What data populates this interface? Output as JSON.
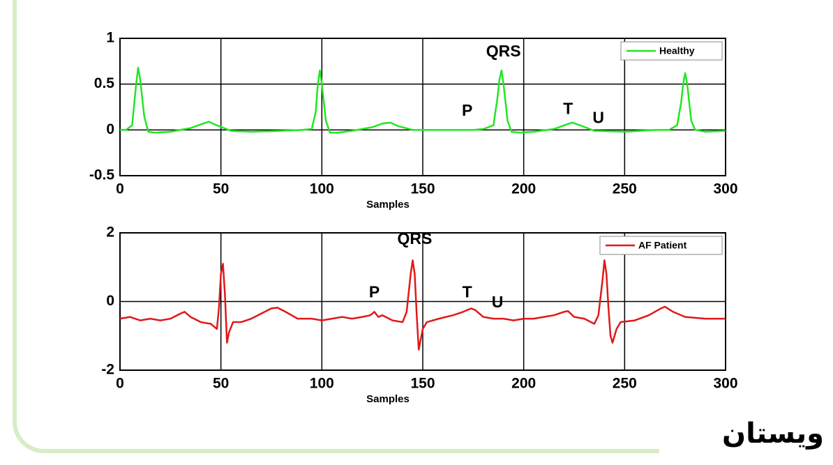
{
  "chart_data": [
    {
      "type": "line",
      "xlabel": "Samples",
      "x": [
        0,
        3,
        6,
        8,
        9,
        10,
        12,
        14,
        17,
        25,
        35,
        40,
        44,
        48,
        55,
        65,
        80,
        90,
        95,
        97,
        98,
        99,
        100,
        102,
        104,
        108,
        115,
        125,
        130,
        134,
        138,
        145,
        160,
        175,
        180,
        185,
        187,
        188,
        189,
        190,
        192,
        194,
        198,
        205,
        215,
        220,
        224,
        228,
        235,
        250,
        265,
        272,
        276,
        278,
        279,
        280,
        281,
        283,
        285,
        290,
        300
      ],
      "series": [
        {
          "name": "Healthy",
          "color": "#22e622",
          "values": [
            0,
            0,
            0.05,
            0.5,
            0.68,
            0.55,
            0.15,
            -0.02,
            -0.03,
            -0.02,
            0.02,
            0.06,
            0.09,
            0.05,
            -0.01,
            -0.02,
            -0.01,
            0,
            0.01,
            0.2,
            0.5,
            0.65,
            0.5,
            0.1,
            -0.03,
            -0.03,
            -0.01,
            0.03,
            0.07,
            0.08,
            0.04,
            0,
            0,
            0,
            0.01,
            0.05,
            0.35,
            0.55,
            0.65,
            0.5,
            0.1,
            -0.02,
            -0.03,
            -0.02,
            0.01,
            0.05,
            0.08,
            0.05,
            -0.01,
            -0.02,
            0,
            0,
            0.05,
            0.3,
            0.5,
            0.62,
            0.5,
            0.1,
            0,
            -0.02,
            -0.01
          ]
        }
      ],
      "xlim": [
        0,
        300
      ],
      "xticks": [
        0,
        50,
        100,
        150,
        200,
        250,
        300
      ],
      "ylim": [
        -0.5,
        1
      ],
      "yticks": [
        -0.5,
        0,
        0.5,
        1
      ],
      "grid": true,
      "legend": "upper right",
      "annotations": [
        {
          "text": "QRS",
          "x": 190,
          "y": 0.85
        },
        {
          "text": "P",
          "x": 172,
          "y": 0.2
        },
        {
          "text": "T",
          "x": 222,
          "y": 0.22
        },
        {
          "text": "U",
          "x": 237,
          "y": 0.12
        }
      ]
    },
    {
      "type": "line",
      "xlabel": "Samples",
      "x": [
        0,
        5,
        10,
        15,
        20,
        25,
        30,
        32,
        35,
        40,
        45,
        48,
        49,
        50,
        51,
        52,
        53,
        54,
        56,
        60,
        65,
        70,
        75,
        78,
        82,
        88,
        95,
        100,
        105,
        110,
        115,
        120,
        124,
        126,
        128,
        130,
        135,
        140,
        142,
        144,
        145,
        146,
        147,
        148,
        150,
        152,
        158,
        165,
        170,
        174,
        176,
        180,
        185,
        190,
        195,
        200,
        205,
        210,
        215,
        220,
        222,
        225,
        230,
        235,
        237,
        239,
        240,
        241,
        242,
        243,
        244,
        246,
        248,
        255,
        262,
        268,
        270,
        274,
        280,
        290,
        300
      ],
      "series": [
        {
          "name": "AF Patient",
          "color": "#e01818",
          "values": [
            -0.5,
            -0.45,
            -0.55,
            -0.5,
            -0.55,
            -0.5,
            -0.35,
            -0.3,
            -0.45,
            -0.6,
            -0.65,
            -0.8,
            -0.2,
            0.8,
            1.1,
            0.2,
            -1.2,
            -0.9,
            -0.6,
            -0.6,
            -0.5,
            -0.35,
            -0.2,
            -0.18,
            -0.3,
            -0.5,
            -0.5,
            -0.55,
            -0.5,
            -0.45,
            -0.5,
            -0.45,
            -0.4,
            -0.3,
            -0.45,
            -0.4,
            -0.55,
            -0.6,
            -0.3,
            0.8,
            1.2,
            0.8,
            -0.4,
            -1.4,
            -0.8,
            -0.6,
            -0.5,
            -0.4,
            -0.3,
            -0.2,
            -0.25,
            -0.45,
            -0.5,
            -0.5,
            -0.55,
            -0.5,
            -0.5,
            -0.45,
            -0.4,
            -0.3,
            -0.28,
            -0.45,
            -0.5,
            -0.65,
            -0.4,
            0.6,
            1.2,
            0.8,
            -0.2,
            -1.0,
            -1.2,
            -0.8,
            -0.6,
            -0.55,
            -0.4,
            -0.2,
            -0.15,
            -0.3,
            -0.45,
            -0.5,
            -0.5
          ]
        }
      ],
      "xlim": [
        0,
        300
      ],
      "xticks": [
        0,
        50,
        100,
        150,
        200,
        250,
        300
      ],
      "ylim": [
        -2,
        2
      ],
      "yticks": [
        -2,
        0,
        2
      ],
      "grid": true,
      "legend": "upper right",
      "annotations": [
        {
          "text": "QRS",
          "x": 146,
          "y": 1.8
        },
        {
          "text": "P",
          "x": 126,
          "y": 0.25
        },
        {
          "text": "T",
          "x": 172,
          "y": 0.25
        },
        {
          "text": "U",
          "x": 187,
          "y": -0.05
        }
      ]
    }
  ],
  "watermark": "ويستان"
}
